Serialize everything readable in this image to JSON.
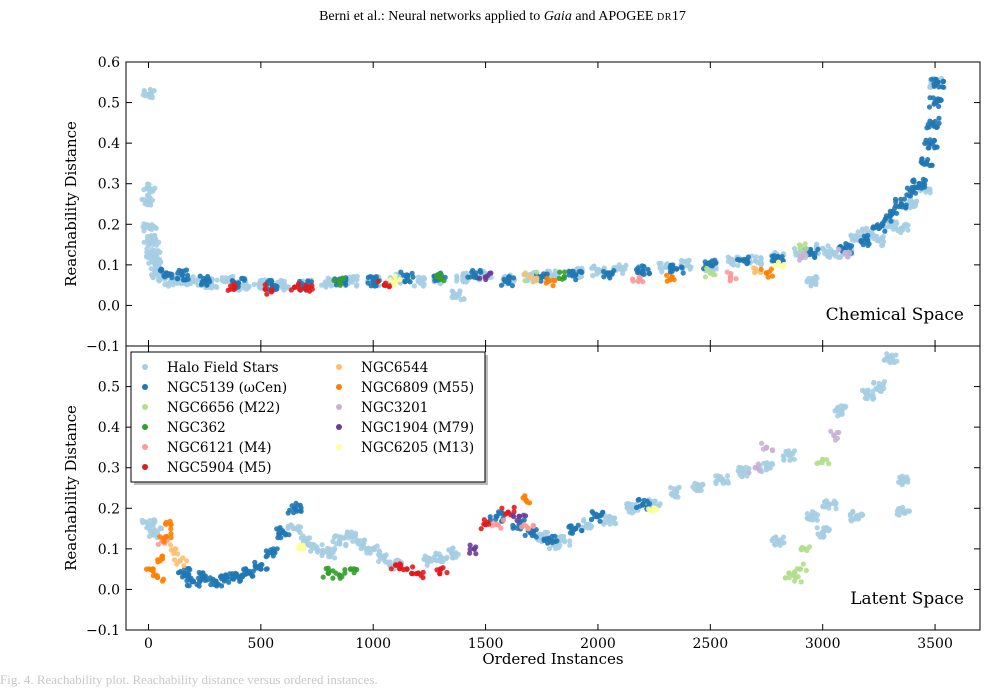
{
  "header": {
    "prefix": "Berni et al.: Neural networks applied to ",
    "italic": "Gaia",
    "middle": " and APOGEE ",
    "smallcaps": "DR",
    "suffix": "17"
  },
  "caption": "Fig. 4. Reachability plot. Reachability distance versus ordered instances.",
  "chart_data": [
    {
      "type": "scatter",
      "title": "",
      "panel_label": "Chemical Space",
      "xlabel": "",
      "ylabel": "Reachability Distance",
      "xlim": [
        -100,
        3700
      ],
      "ylim": [
        -0.1,
        0.6
      ],
      "xticks": [
        0,
        500,
        1000,
        1500,
        2000,
        2500,
        3000,
        3500
      ],
      "yticks": [
        -0.1,
        0.0,
        0.1,
        0.2,
        0.3,
        0.4,
        0.5,
        0.6
      ],
      "ytick_labels": [
        "−0.1",
        "0.0",
        "0.1",
        "0.2",
        "0.3",
        "0.4",
        "0.5",
        "0.6"
      ],
      "grid": false,
      "legend": "none",
      "series": [
        {
          "name": "Halo Field Stars",
          "color": "#a6cee3",
          "points": [
            [
              0,
              0.52
            ],
            [
              0,
              0.29
            ],
            [
              0,
              0.26
            ],
            [
              5,
              0.19
            ],
            [
              10,
              0.16
            ],
            [
              15,
              0.13
            ],
            [
              20,
              0.16
            ],
            [
              25,
              0.12
            ],
            [
              30,
              0.1
            ],
            [
              40,
              0.08
            ],
            [
              60,
              0.07
            ],
            [
              100,
              0.06
            ],
            [
              150,
              0.065
            ],
            [
              200,
              0.06
            ],
            [
              280,
              0.055
            ],
            [
              350,
              0.06
            ],
            [
              420,
              0.05
            ],
            [
              500,
              0.055
            ],
            [
              600,
              0.05
            ],
            [
              700,
              0.05
            ],
            [
              800,
              0.055
            ],
            [
              900,
              0.06
            ],
            [
              1000,
              0.06
            ],
            [
              1100,
              0.065
            ],
            [
              1200,
              0.06
            ],
            [
              1300,
              0.065
            ],
            [
              1380,
              0.025
            ],
            [
              1400,
              0.07
            ],
            [
              1500,
              0.075
            ],
            [
              1600,
              0.065
            ],
            [
              1700,
              0.07
            ],
            [
              1800,
              0.075
            ],
            [
              1900,
              0.08
            ],
            [
              2000,
              0.085
            ],
            [
              2100,
              0.09
            ],
            [
              2200,
              0.085
            ],
            [
              2300,
              0.095
            ],
            [
              2400,
              0.1
            ],
            [
              2500,
              0.095
            ],
            [
              2600,
              0.11
            ],
            [
              2700,
              0.11
            ],
            [
              2800,
              0.12
            ],
            [
              2900,
              0.13
            ],
            [
              2950,
              0.06
            ],
            [
              3000,
              0.14
            ],
            [
              3050,
              0.13
            ],
            [
              3100,
              0.13
            ],
            [
              3150,
              0.17
            ],
            [
              3200,
              0.18
            ],
            [
              3250,
              0.16
            ],
            [
              3300,
              0.2
            ],
            [
              3350,
              0.19
            ],
            [
              3400,
              0.25
            ],
            [
              3450,
              0.29
            ],
            [
              3500,
              0.55
            ]
          ]
        },
        {
          "name": "NGC5139 (ωCen)",
          "color": "#1f78b4",
          "points": [
            [
              80,
              0.08
            ],
            [
              150,
              0.075
            ],
            [
              250,
              0.06
            ],
            [
              400,
              0.055
            ],
            [
              550,
              0.05
            ],
            [
              700,
              0.05
            ],
            [
              850,
              0.06
            ],
            [
              1000,
              0.06
            ],
            [
              1150,
              0.07
            ],
            [
              1300,
              0.07
            ],
            [
              1450,
              0.075
            ],
            [
              1600,
              0.06
            ],
            [
              1750,
              0.07
            ],
            [
              1900,
              0.075
            ],
            [
              2050,
              0.08
            ],
            [
              2200,
              0.085
            ],
            [
              2350,
              0.09
            ],
            [
              2500,
              0.1
            ],
            [
              2650,
              0.11
            ],
            [
              2800,
              0.12
            ],
            [
              2950,
              0.13
            ],
            [
              3100,
              0.14
            ],
            [
              3200,
              0.16
            ],
            [
              3250,
              0.19
            ],
            [
              3300,
              0.22
            ],
            [
              3350,
              0.25
            ],
            [
              3400,
              0.28
            ],
            [
              3430,
              0.3
            ],
            [
              3460,
              0.35
            ],
            [
              3480,
              0.4
            ],
            [
              3490,
              0.45
            ],
            [
              3500,
              0.5
            ],
            [
              3510,
              0.55
            ]
          ]
        },
        {
          "name": "NGC6656 (M22)",
          "color": "#b2df8a",
          "points": [
            [
              1700,
              0.07
            ],
            [
              2500,
              0.08
            ],
            [
              2900,
              0.14
            ]
          ]
        },
        {
          "name": "NGC362",
          "color": "#33a02c",
          "points": [
            [
              850,
              0.06
            ],
            [
              1300,
              0.065
            ],
            [
              1850,
              0.07
            ]
          ]
        },
        {
          "name": "NGC6121 (M4)",
          "color": "#fb9a99",
          "points": [
            [
              2180,
              0.06
            ],
            [
              2590,
              0.07
            ]
          ]
        },
        {
          "name": "NGC5904 (M5)",
          "color": "#e31a1c",
          "points": [
            [
              380,
              0.04
            ],
            [
              520,
              0.04
            ],
            [
              650,
              0.045
            ],
            [
              700,
              0.04
            ],
            [
              1050,
              0.05
            ]
          ]
        },
        {
          "name": "NGC6544",
          "color": "#fdbf6f",
          "points": [
            [
              1700,
              0.07
            ],
            [
              2700,
              0.09
            ]
          ]
        },
        {
          "name": "NGC6809 (M55)",
          "color": "#ff7f00",
          "points": [
            [
              1780,
              0.06
            ],
            [
              2330,
              0.07
            ],
            [
              2750,
              0.08
            ]
          ]
        },
        {
          "name": "NGC3201",
          "color": "#cab2d6",
          "points": [
            [
              2900,
              0.12
            ],
            [
              3100,
              0.13
            ]
          ]
        },
        {
          "name": "NGC1904 (M79)",
          "color": "#6a3d9a",
          "points": [
            [
              1500,
              0.07
            ]
          ]
        },
        {
          "name": "NGC6205 (M13)",
          "color": "#ffff99",
          "points": [
            [
              1100,
              0.06
            ],
            [
              2800,
              0.1
            ]
          ]
        }
      ]
    },
    {
      "type": "scatter",
      "title": "",
      "panel_label": "Latent Space",
      "xlabel": "Ordered Instances",
      "ylabel": "Reachability Distance",
      "xlim": [
        -100,
        3700
      ],
      "ylim": [
        -0.1,
        0.6
      ],
      "xticks": [
        0,
        500,
        1000,
        1500,
        2000,
        2500,
        3000,
        3500
      ],
      "yticks": [
        -0.1,
        0.0,
        0.1,
        0.2,
        0.3,
        0.4,
        0.5
      ],
      "ytick_labels": [
        "−0.1",
        "0.0",
        "0.1",
        "0.2",
        "0.3",
        "0.4",
        "0.5"
      ],
      "grid": false,
      "legend": "top-left",
      "series": [
        {
          "name": "Halo Field Stars",
          "color": "#a6cee3",
          "points": [
            [
              0,
              0.16
            ],
            [
              30,
              0.14
            ],
            [
              650,
              0.15
            ],
            [
              700,
              0.12
            ],
            [
              750,
              0.1
            ],
            [
              800,
              0.09
            ],
            [
              850,
              0.12
            ],
            [
              900,
              0.13
            ],
            [
              950,
              0.11
            ],
            [
              1000,
              0.1
            ],
            [
              1050,
              0.08
            ],
            [
              1100,
              0.06
            ],
            [
              1250,
              0.07
            ],
            [
              1300,
              0.08
            ],
            [
              1350,
              0.09
            ],
            [
              1750,
              0.13
            ],
            [
              1800,
              0.11
            ],
            [
              1850,
              0.12
            ],
            [
              1950,
              0.16
            ],
            [
              2050,
              0.17
            ],
            [
              2150,
              0.2
            ],
            [
              2250,
              0.21
            ],
            [
              2350,
              0.24
            ],
            [
              2450,
              0.25
            ],
            [
              2550,
              0.27
            ],
            [
              2650,
              0.29
            ],
            [
              2750,
              0.3
            ],
            [
              2800,
              0.12
            ],
            [
              2850,
              0.33
            ],
            [
              2950,
              0.18
            ],
            [
              3000,
              0.14
            ],
            [
              3030,
              0.21
            ],
            [
              3080,
              0.44
            ],
            [
              3150,
              0.18
            ],
            [
              3200,
              0.48
            ],
            [
              3250,
              0.5
            ],
            [
              3300,
              0.57
            ],
            [
              3350,
              0.27
            ],
            [
              3360,
              0.19
            ]
          ]
        },
        {
          "name": "NGC5139 (ωCen)",
          "color": "#1f78b4",
          "points": [
            [
              160,
              0.04
            ],
            [
              200,
              0.02
            ],
            [
              250,
              0.03
            ],
            [
              300,
              0.02
            ],
            [
              350,
              0.03
            ],
            [
              400,
              0.03
            ],
            [
              450,
              0.04
            ],
            [
              500,
              0.06
            ],
            [
              550,
              0.09
            ],
            [
              600,
              0.14
            ],
            [
              650,
              0.2
            ],
            [
              1550,
              0.18
            ],
            [
              1650,
              0.16
            ],
            [
              1700,
              0.14
            ],
            [
              1790,
              0.12
            ],
            [
              1900,
              0.15
            ],
            [
              2000,
              0.18
            ],
            [
              2200,
              0.21
            ]
          ]
        },
        {
          "name": "NGC6656 (M22)",
          "color": "#b2df8a",
          "points": [
            [
              2850,
              0.04
            ],
            [
              2880,
              0.03
            ],
            [
              2900,
              0.05
            ],
            [
              2920,
              0.1
            ],
            [
              3000,
              0.32
            ]
          ]
        },
        {
          "name": "NGC362",
          "color": "#33a02c",
          "points": [
            [
              800,
              0.04
            ],
            [
              850,
              0.035
            ],
            [
              900,
              0.05
            ]
          ]
        },
        {
          "name": "NGC6121 (M4)",
          "color": "#fb9a99",
          "points": [
            [
              60,
              0.12
            ],
            [
              1550,
              0.16
            ],
            [
              1690,
              0.15
            ]
          ]
        },
        {
          "name": "NGC5904 (M5)",
          "color": "#e31a1c",
          "points": [
            [
              1100,
              0.06
            ],
            [
              1150,
              0.05
            ],
            [
              1200,
              0.04
            ],
            [
              1300,
              0.05
            ],
            [
              1500,
              0.16
            ],
            [
              1600,
              0.19
            ]
          ]
        },
        {
          "name": "NGC6544",
          "color": "#fdbf6f",
          "points": [
            [
              120,
              0.1
            ],
            [
              140,
              0.07
            ]
          ]
        },
        {
          "name": "NGC6809 (M55)",
          "color": "#ff7f00",
          "points": [
            [
              20,
              0.05
            ],
            [
              40,
              0.03
            ],
            [
              60,
              0.08
            ],
            [
              80,
              0.13
            ],
            [
              100,
              0.16
            ],
            [
              1680,
              0.22
            ]
          ]
        },
        {
          "name": "NGC3201",
          "color": "#cab2d6",
          "points": [
            [
              2700,
              0.3
            ],
            [
              2750,
              0.35
            ],
            [
              3050,
              0.38
            ]
          ]
        },
        {
          "name": "NGC1904 (M79)",
          "color": "#6a3d9a",
          "points": [
            [
              1450,
              0.1
            ],
            [
              1650,
              0.18
            ]
          ]
        },
        {
          "name": "NGC6205 (M13)",
          "color": "#ffff99",
          "points": [
            [
              690,
              0.1
            ],
            [
              2250,
              0.2
            ]
          ]
        }
      ]
    }
  ]
}
